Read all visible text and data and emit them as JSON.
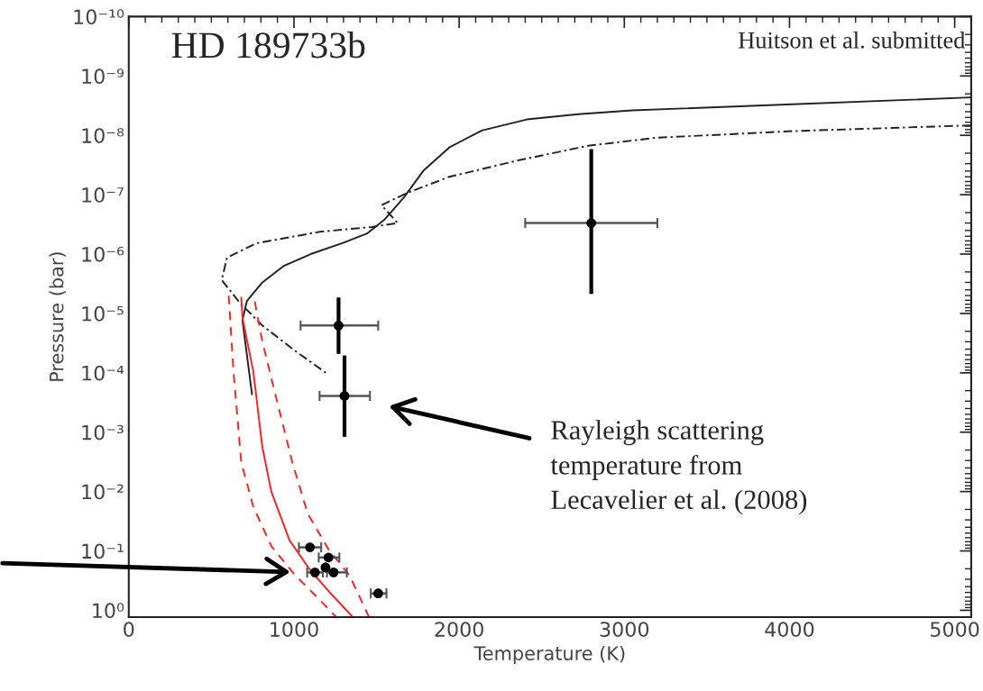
{
  "chart_data": {
    "type": "line",
    "title": "HD 189733b",
    "xlabel": "Temperature (K)",
    "ylabel": "Pressure (bar)",
    "log": "y",
    "grid": false,
    "legend": false,
    "xlim": [
      0,
      5100
    ],
    "xticks": [
      0,
      1000,
      2000,
      3000,
      4000,
      5000
    ],
    "ylim": [
      1.3,
      1e-10
    ],
    "yticks": [
      {
        "value": 1e-10,
        "label": "10⁻¹⁰"
      },
      {
        "value": 1e-09,
        "label": "10⁻⁹"
      },
      {
        "value": 1e-08,
        "label": "10⁻⁸"
      },
      {
        "value": 1e-07,
        "label": "10⁻⁷"
      },
      {
        "value": 1e-06,
        "label": "10⁻⁶"
      },
      {
        "value": 1e-05,
        "label": "10⁻⁵"
      },
      {
        "value": 0.0001,
        "label": "10⁻⁴"
      },
      {
        "value": 0.001,
        "label": "10⁻³"
      },
      {
        "value": 0.01,
        "label": "10⁻²"
      },
      {
        "value": 0.1,
        "label": "10⁻¹"
      },
      {
        "value": 1,
        "label": "10⁰"
      }
    ],
    "series": [
      {
        "color": "#222222",
        "line_style": "solid",
        "x": [
          746,
          688,
          715,
          809,
          936,
          1101,
          1297,
          1443,
          1550,
          1667,
          1785,
          1940,
          2137,
          2410,
          2721,
          3049,
          4016,
          5098
        ],
        "values": [
          0.00023,
          1.3e-05,
          6.2e-06,
          3e-06,
          1.6e-06,
          1e-06,
          6.5e-07,
          4.5e-07,
          2.6e-07,
          1.1e-07,
          3.9e-08,
          1.6e-08,
          8.3e-09,
          5.4e-09,
          4.4e-09,
          3.8e-09,
          3e-09,
          2.3e-09
        ]
      },
      {
        "color": "#222222",
        "line_style": "dashdot",
        "x": [
          5098,
          4016,
          3191,
          2781,
          2369,
          1940,
          1687,
          1530,
          1628,
          1470,
          1158,
          770,
          594,
          563,
          672,
          809,
          1004,
          1208
        ],
        "values": [
          6.8e-09,
          8.5e-09,
          1.1e-08,
          1.5e-08,
          2.6e-08,
          5e-08,
          9.3e-08,
          1.5e-07,
          3e-07,
          3.5e-07,
          4.2e-07,
          6.6e-07,
          1.15e-06,
          2.75e-06,
          6.6e-06,
          1.6e-05,
          4.2e-05,
          0.000107
        ]
      },
      {
        "color": "#ff2020",
        "line_style": "solid",
        "x": [
          681,
          689,
          754,
          809,
          863,
          973,
          1098,
          1228,
          1355
        ],
        "values": [
          5.4e-06,
          1.2e-05,
          9.5e-05,
          0.0018,
          0.01,
          0.066,
          0.21,
          0.54,
          1.29
        ]
      },
      {
        "color": "#ff2020",
        "line_style": "dashed",
        "x": [
          605,
          634,
          681,
          754,
          863,
          1009,
          1137,
          1255
        ],
        "values": [
          5e-06,
          9.5e-05,
          0.0032,
          0.018,
          0.083,
          0.26,
          0.59,
          1.29
        ]
      },
      {
        "color": "#ff2020",
        "line_style": "dashed",
        "x": [
          763,
          809,
          900,
          990,
          1082,
          1208,
          1337,
          1454
        ],
        "values": [
          6.3e-06,
          3e-05,
          0.00032,
          0.0032,
          0.023,
          0.093,
          0.26,
          1.29
        ]
      },
      {
        "type": "scatter",
        "color": "#000000",
        "marker": "circle",
        "x": [
          2800,
          1270,
          1306,
          1097,
          1209,
          1191,
          1127,
          1240,
          1510
        ],
        "values": [
          3e-07,
          1.6e-05,
          0.000245,
          0.087,
          0.129,
          0.19,
          0.23,
          0.23,
          0.52
        ],
        "errors": [
          [
            1.7e-08,
            4.7e-06
          ],
          [
            5.4e-06,
            4.8e-05
          ],
          [
            5.1e-05,
            0.0012
          ],
          null,
          null,
          null,
          null,
          null,
          null
        ],
        "xerrors": [
          [
            2400,
            3200
          ],
          [
            1040,
            1510
          ],
          [
            1155,
            1460
          ],
          [
            1030,
            1165
          ],
          [
            1150,
            1275
          ],
          null,
          [
            1080,
            1175
          ],
          [
            1200,
            1320
          ],
          [
            1465,
            1560
          ]
        ]
      }
    ],
    "annotations": [
      "Huitson et al. submitted",
      "Rayleigh scattering\ntemperature from\nLecavelier et al. (2008)"
    ]
  }
}
